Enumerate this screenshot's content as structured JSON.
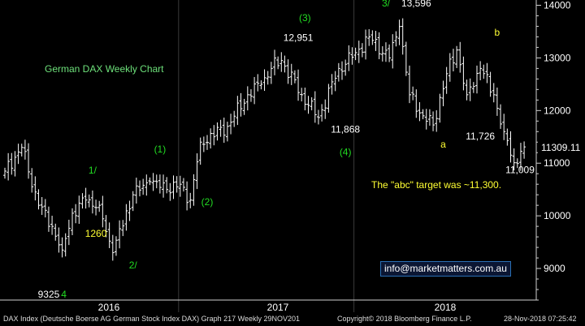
{
  "chart_data": {
    "type": "ohlc",
    "title": "German DAX Weekly Chart",
    "xlabel": "",
    "ylabel": "",
    "ylim": [
      8400,
      14100
    ],
    "y_ticks": [
      9000,
      10000,
      11000,
      12000,
      13000,
      14000
    ],
    "x_ticks": [
      "2016",
      "2017",
      "2018"
    ],
    "last_price": "11309.11",
    "series": [
      {
        "weeks": 155,
        "close_path": [
          {
            "week": 0,
            "close": 10850
          },
          {
            "week": 5,
            "close": 11300
          },
          {
            "week": 10,
            "close": 10200
          },
          {
            "week": 14,
            "close": 9800
          },
          {
            "week": 17,
            "close": 9350
          },
          {
            "week": 20,
            "close": 10050
          },
          {
            "week": 24,
            "close": 10300
          },
          {
            "week": 28,
            "close": 10200
          },
          {
            "week": 30,
            "close": 9700
          },
          {
            "week": 32,
            "close": 9300
          },
          {
            "week": 38,
            "close": 10400
          },
          {
            "week": 43,
            "close": 10650
          },
          {
            "week": 48,
            "close": 10500
          },
          {
            "week": 52,
            "close": 10600
          },
          {
            "week": 55,
            "close": 10300
          },
          {
            "week": 58,
            "close": 11400
          },
          {
            "week": 66,
            "close": 11700
          },
          {
            "week": 72,
            "close": 12300
          },
          {
            "week": 76,
            "close": 12500
          },
          {
            "week": 79,
            "close": 12800
          },
          {
            "week": 82,
            "close": 12951
          },
          {
            "week": 88,
            "close": 12300
          },
          {
            "week": 93,
            "close": 11868
          },
          {
            "week": 99,
            "close": 12800
          },
          {
            "week": 104,
            "close": 13100
          },
          {
            "week": 108,
            "close": 13400
          },
          {
            "week": 114,
            "close": 13000
          },
          {
            "week": 117,
            "close": 13596
          },
          {
            "week": 120,
            "close": 12300
          },
          {
            "week": 124,
            "close": 11900
          },
          {
            "week": 127,
            "close": 11726
          },
          {
            "week": 131,
            "close": 12700
          },
          {
            "week": 134,
            "close": 13150
          },
          {
            "week": 137,
            "close": 12300
          },
          {
            "week": 141,
            "close": 12800
          },
          {
            "week": 145,
            "close": 12300
          },
          {
            "week": 148,
            "close": 11600
          },
          {
            "week": 151,
            "close": 11009
          },
          {
            "week": 154,
            "close": 11309
          }
        ]
      }
    ],
    "annotations": [
      {
        "text": "9325",
        "color": "#ffffff",
        "week": 13,
        "price": 8450
      },
      {
        "text": "4",
        "color": "#22dd22",
        "week": 17.5,
        "price": 8450
      },
      {
        "text": "1/",
        "color": "#22dd22",
        "week": 26,
        "price": 10800
      },
      {
        "text": "1260",
        "color": "#ffff33",
        "week": 27,
        "price": 9600
      },
      {
        "text": "2/",
        "color": "#22dd22",
        "week": 38,
        "price": 9000
      },
      {
        "text": "(1)",
        "color": "#22dd22",
        "week": 46,
        "price": 11200
      },
      {
        "text": "(2)",
        "color": "#22dd22",
        "week": 60,
        "price": 10200
      },
      {
        "text": "(3)",
        "color": "#22dd22",
        "week": 89,
        "price": 13700
      },
      {
        "text": "12,951",
        "color": "#ffffff",
        "week": 87,
        "price": 13320
      },
      {
        "text": "11,868",
        "color": "#ffffff",
        "week": 101,
        "price": 11580
      },
      {
        "text": "(4)",
        "color": "#22dd22",
        "week": 101,
        "price": 11150
      },
      {
        "text": "3/",
        "color": "#22dd22",
        "week": 113,
        "price": 13980
      },
      {
        "text": "13,596",
        "color": "#ffffff",
        "week": 122,
        "price": 13980
      },
      {
        "text": "a",
        "color": "#ffff33",
        "week": 130,
        "price": 11300
      },
      {
        "text": "11,726",
        "color": "#ffffff",
        "week": 141,
        "price": 11450
      },
      {
        "text": "b",
        "color": "#ffff33",
        "week": 146,
        "price": 13420
      },
      {
        "text": "11,009",
        "color": "#ffffff",
        "week": 163,
        "price": 10810
      }
    ],
    "notes": [
      {
        "text": "German DAX Weekly Chart",
        "color": "#6de07a"
      },
      {
        "text": "The \"abc\" target was ~11,300.",
        "color": "#ffff33"
      }
    ]
  },
  "contact": "info@marketmatters.com.au",
  "footer": {
    "source": "DAX Index (Deutsche Boerse AG German Stock Index DAX) Graph 217  Weekly 29NOV201",
    "copyright": "Copyright© 2018 Bloomberg Finance L.P.",
    "timestamp": "28-Nov-2018 07:25:42"
  }
}
